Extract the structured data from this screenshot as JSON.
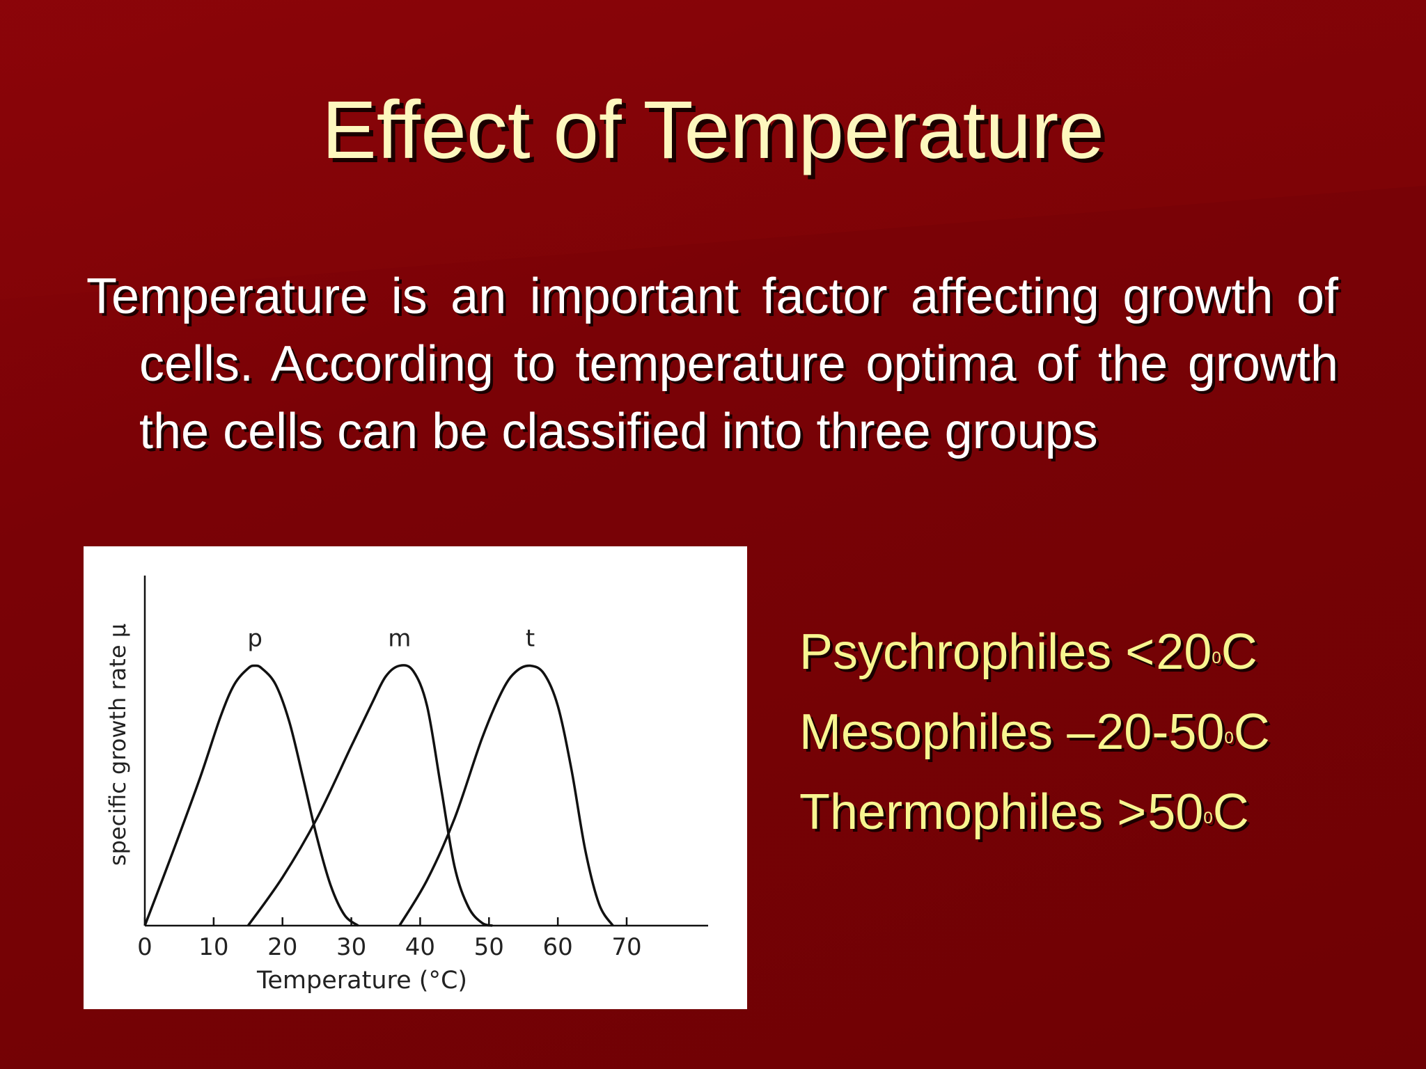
{
  "slide": {
    "title": "Effect of Temperature",
    "body": "Temperature is an important factor affecting growth of cells. According to temperature optima of the growth the cells can be classified into three groups"
  },
  "groups": [
    {
      "name": "Psychrophiles",
      "op": "<",
      "range": "20",
      "deg": "0",
      "unit": "C"
    },
    {
      "name": "Mesophiles",
      "op": "–",
      "range": "20-50",
      "deg": "0",
      "unit": "C"
    },
    {
      "name": "Thermophiles",
      "op": ">",
      "range": "50",
      "deg": "0",
      "unit": "C"
    }
  ],
  "chart_data": {
    "type": "line",
    "xlabel": "Temperature (°C)",
    "ylabel": "specific growth rate μ",
    "xlim": [
      0,
      70
    ],
    "ylim": [
      0,
      1
    ],
    "xticks": [
      0,
      10,
      20,
      30,
      40,
      50,
      60,
      70
    ],
    "grid": false,
    "series": [
      {
        "name": "p",
        "x": [
          0,
          4,
          8,
          11,
          13,
          15,
          16,
          17,
          19,
          21,
          23,
          25,
          27,
          29,
          31
        ],
        "y": [
          0,
          0.27,
          0.55,
          0.78,
          0.9,
          0.96,
          0.97,
          0.96,
          0.9,
          0.76,
          0.55,
          0.33,
          0.15,
          0.04,
          0
        ]
      },
      {
        "name": "m",
        "x": [
          15,
          20,
          25,
          30,
          33,
          35,
          37,
          39,
          41,
          43,
          45,
          47,
          49,
          50.5
        ],
        "y": [
          0,
          0.18,
          0.4,
          0.67,
          0.83,
          0.93,
          0.97,
          0.95,
          0.82,
          0.52,
          0.22,
          0.07,
          0.01,
          0
        ]
      },
      {
        "name": "t",
        "x": [
          37,
          41,
          45,
          49,
          52,
          54,
          56,
          58,
          60,
          62,
          64,
          66,
          68
        ],
        "y": [
          0,
          0.17,
          0.4,
          0.7,
          0.88,
          0.95,
          0.97,
          0.94,
          0.82,
          0.58,
          0.28,
          0.08,
          0
        ]
      }
    ]
  }
}
